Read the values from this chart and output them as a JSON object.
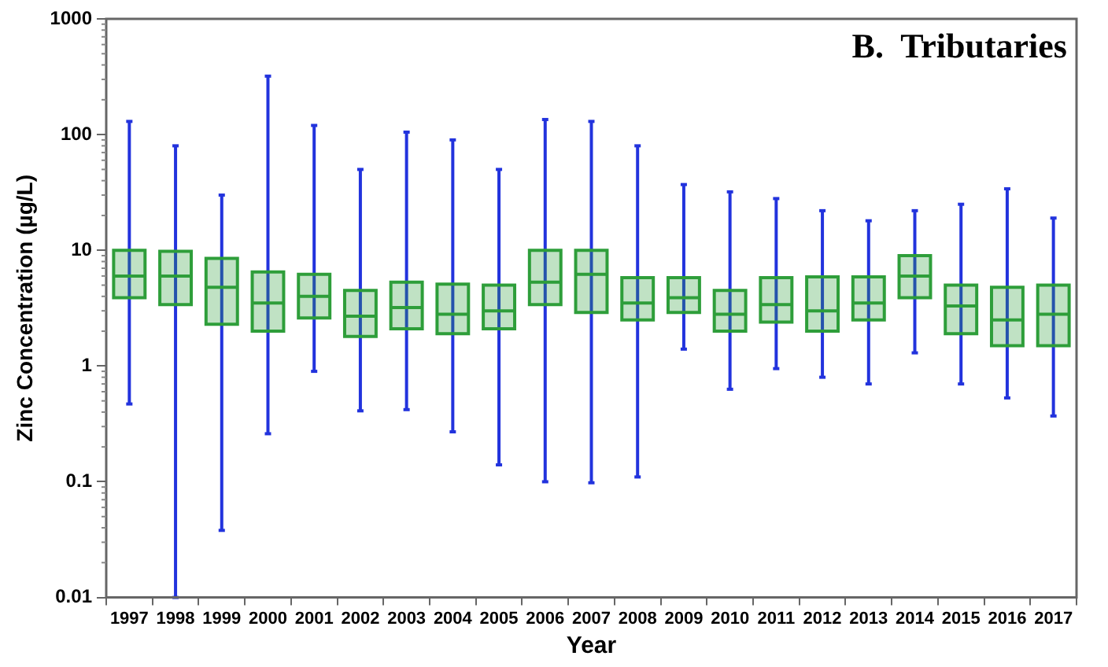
{
  "chart_data": {
    "type": "box",
    "title": "B.  Tributaries",
    "xlabel": "Year",
    "ylabel": "Zinc Concentration (µg/L)",
    "categories": [
      "1997",
      "1998",
      "1999",
      "2000",
      "2001",
      "2002",
      "2003",
      "2004",
      "2005",
      "2006",
      "2007",
      "2008",
      "2009",
      "2010",
      "2011",
      "2012",
      "2013",
      "2014",
      "2015",
      "2016",
      "2017"
    ],
    "series": [
      {
        "color": "#2e9e3a",
        "boxes": [
          {
            "low": 0.47,
            "q1": 3.9,
            "median": 6,
            "q3": 10,
            "high": 130
          },
          {
            "low": 0.01,
            "q1": 3.4,
            "median": 6,
            "q3": 9.8,
            "high": 80
          },
          {
            "low": 0.038,
            "q1": 2.3,
            "median": 4.8,
            "q3": 8.5,
            "high": 30
          },
          {
            "low": 0.26,
            "q1": 2,
            "median": 3.5,
            "q3": 6.5,
            "high": 320
          },
          {
            "low": 0.9,
            "q1": 2.6,
            "median": 4,
            "q3": 6.2,
            "high": 120
          },
          {
            "low": 0.41,
            "q1": 1.8,
            "median": 2.7,
            "q3": 4.5,
            "high": 50
          },
          {
            "low": 0.42,
            "q1": 2.1,
            "median": 3.2,
            "q3": 5.3,
            "high": 105
          },
          {
            "low": 0.27,
            "q1": 1.9,
            "median": 2.8,
            "q3": 5.1,
            "high": 90
          },
          {
            "low": 0.14,
            "q1": 2.1,
            "median": 3,
            "q3": 5,
            "high": 50
          },
          {
            "low": 0.1,
            "q1": 3.4,
            "median": 5.3,
            "q3": 10,
            "high": 135
          },
          {
            "low": 0.098,
            "q1": 2.9,
            "median": 6.2,
            "q3": 10,
            "high": 130
          },
          {
            "low": 0.11,
            "q1": 2.5,
            "median": 3.5,
            "q3": 5.8,
            "high": 80
          },
          {
            "low": 1.4,
            "q1": 2.9,
            "median": 3.9,
            "q3": 5.8,
            "high": 37
          },
          {
            "low": 0.63,
            "q1": 2,
            "median": 2.8,
            "q3": 4.5,
            "high": 32
          },
          {
            "low": 0.95,
            "q1": 2.4,
            "median": 3.4,
            "q3": 5.8,
            "high": 28
          },
          {
            "low": 0.8,
            "q1": 2,
            "median": 3,
            "q3": 5.9,
            "high": 22
          },
          {
            "low": 0.7,
            "q1": 2.5,
            "median": 3.5,
            "q3": 5.9,
            "high": 18
          },
          {
            "low": 1.3,
            "q1": 3.9,
            "median": 6,
            "q3": 9,
            "high": 22
          },
          {
            "low": 0.7,
            "q1": 1.9,
            "median": 3.3,
            "q3": 5,
            "high": 25
          },
          {
            "low": 0.53,
            "q1": 1.5,
            "median": 2.5,
            "q3": 4.8,
            "high": 34
          },
          {
            "low": 0.37,
            "q1": 1.5,
            "median": 2.8,
            "q3": 5,
            "high": 19
          }
        ]
      }
    ],
    "log": "y",
    "ylim": [
      0.01,
      1000
    ],
    "yticks": [
      0.01,
      0.1,
      1,
      10,
      100,
      1000
    ],
    "grid": false,
    "legend": false
  }
}
